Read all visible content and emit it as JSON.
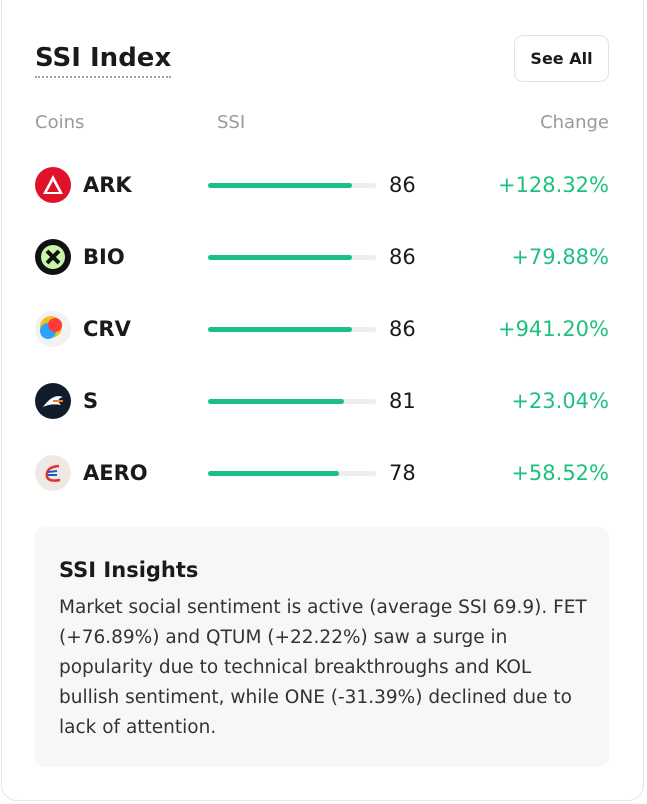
{
  "header": {
    "title": "SSI Index",
    "button": "See All"
  },
  "columns": {
    "coins": "Coins",
    "ssi": "SSI",
    "change": "Change"
  },
  "rows": [
    {
      "coin": "ARK",
      "ssi": 86,
      "change": "+128.32%"
    },
    {
      "coin": "BIO",
      "ssi": 86,
      "change": "+79.88%"
    },
    {
      "coin": "CRV",
      "ssi": 86,
      "change": "+941.20%"
    },
    {
      "coin": "S",
      "ssi": 81,
      "change": "+23.04%"
    },
    {
      "coin": "AERO",
      "ssi": 78,
      "change": "+58.52%"
    }
  ],
  "insights": {
    "title": "SSI Insights",
    "text": "Market social sentiment is active (average SSI 69.9). FET (+76.89%) and QTUM (+22.22%) saw a surge in popularity due to technical breakthroughs and KOL bullish sentiment, while ONE (-31.39%) declined due to lack of attention."
  }
}
